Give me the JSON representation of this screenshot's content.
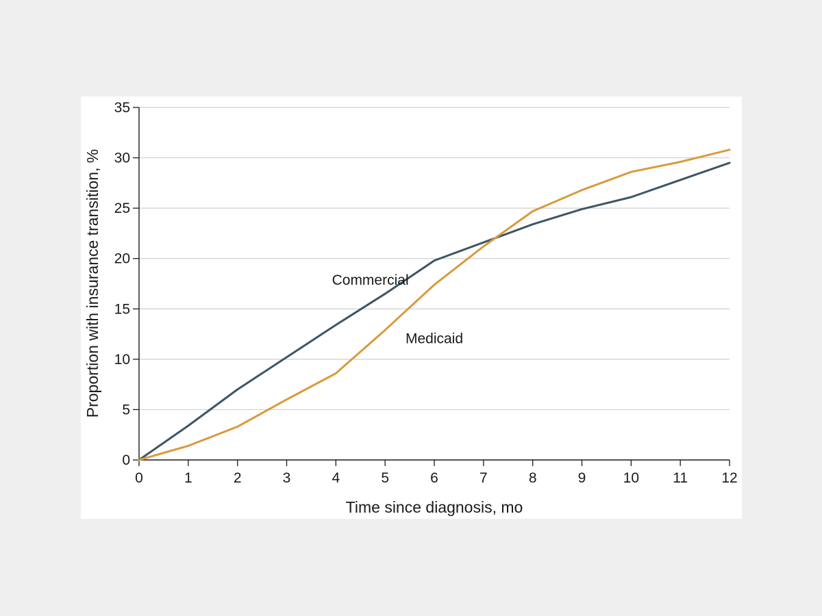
{
  "chart_data": {
    "type": "line",
    "xlabel": "Time since diagnosis, mo",
    "ylabel": "Proportion with insurance transition, %",
    "xlim": [
      0,
      12
    ],
    "ylim": [
      0,
      35
    ],
    "x_ticks": [
      0,
      1,
      2,
      3,
      4,
      5,
      6,
      7,
      8,
      9,
      10,
      11,
      12
    ],
    "y_ticks": [
      0,
      5,
      10,
      15,
      20,
      25,
      30,
      35
    ],
    "grid": "horizontal",
    "legend": "none (inline series labels)",
    "x": [
      0,
      1,
      2,
      3,
      4,
      5,
      6,
      7,
      8,
      9,
      10,
      11,
      12
    ],
    "series": [
      {
        "name": "Commercial",
        "color": "#3d5566",
        "values": [
          0,
          3.4,
          7.0,
          10.2,
          13.4,
          16.5,
          19.8,
          21.6,
          23.4,
          24.9,
          26.1,
          27.8,
          29.5
        ]
      },
      {
        "name": "Medicaid",
        "color": "#d99a3c",
        "values": [
          0,
          1.4,
          3.3,
          6.0,
          8.6,
          12.9,
          17.4,
          21.2,
          24.7,
          26.8,
          28.6,
          29.6,
          30.8
        ]
      }
    ],
    "annotations": [
      {
        "text": "Commercial",
        "x": 4.7,
        "y": 17.4
      },
      {
        "text": "Medicaid",
        "x": 6.0,
        "y": 11.6
      }
    ]
  }
}
